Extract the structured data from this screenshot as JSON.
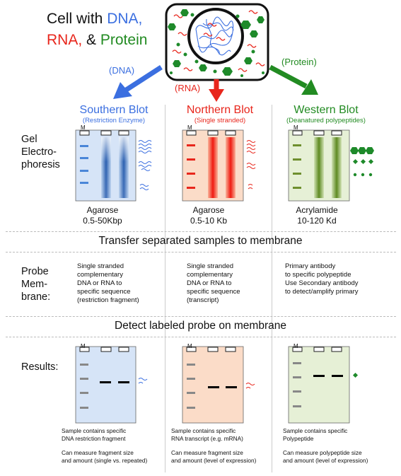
{
  "header": {
    "line1_prefix": "Cell with ",
    "line1_dna": "DNA,",
    "line2_rna": "RNA,",
    "line2_mid": " & ",
    "line2_protein": "Protein"
  },
  "arrows": {
    "dna": "(DNA)",
    "rna": "(RNA)",
    "protein": "(Protein)"
  },
  "colors": {
    "dna": "#3b6fe0",
    "rna": "#e8261c",
    "protein": "#228b22",
    "southern_bg": "#d6e4f7",
    "northern_bg": "#fbdcc8",
    "western_bg": "#e6f0d6"
  },
  "columns": [
    {
      "title": "Southern Blot",
      "subtitle": "(Restriction Enzyme)",
      "gel_type": "Agarose",
      "gel_range": "0.5-50Kbp",
      "probe_lines": [
        "Single stranded",
        "complementary",
        "DNA or RNA to",
        "specific sequence",
        "(restriction fragment)"
      ],
      "result_line1": "Sample contains specific",
      "result_line2": "DNA restriction fragment",
      "result_line3": "Can measure fragment size",
      "result_line4": "and amount (single vs. repeated)"
    },
    {
      "title": "Northern Blot",
      "subtitle": "(Single stranded)",
      "gel_type": "Agarose",
      "gel_range": "0.5-10 Kb",
      "probe_lines": [
        "Single stranded",
        "complementary",
        "DNA or RNA to",
        "specific sequence",
        "(transcript)"
      ],
      "result_line1": "Sample contains specific",
      "result_line2": "RNA transcript (e.g. mRNA)",
      "result_line3": "Can measure fragment size",
      "result_line4": "and amount (level of expression)"
    },
    {
      "title": "Western Blot",
      "subtitle": "(Deanatured polypeptides)",
      "gel_type": "Acrylamide",
      "gel_range": "10-120 Kd",
      "probe_lines": [
        "Primary antibody",
        "to specific polypeptide",
        "Use Secondary antibody",
        "to detect/amplify primary"
      ],
      "result_line1": "Sample contains specific",
      "result_line2": "Polypeptide",
      "result_line3": "Can measure polypeptide size",
      "result_line4": "and amount (level of expression)"
    }
  ],
  "rows": {
    "gel": [
      "Gel",
      "Electro-",
      "phoresis"
    ],
    "probe": [
      "Probe",
      "Mem-",
      "brane:"
    ],
    "results": "Results:"
  },
  "sections": {
    "transfer": "Transfer separated samples to membrane",
    "detect": "Detect labeled probe on membrane"
  },
  "marker_label": "M"
}
